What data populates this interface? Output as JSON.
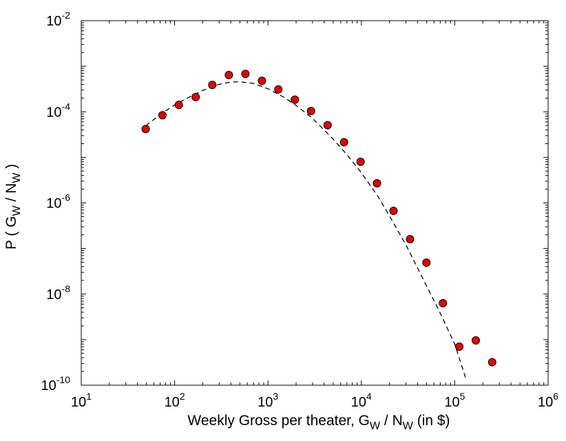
{
  "chart_data": {
    "type": "scatter",
    "title": "",
    "xscale": "log",
    "yscale": "log",
    "xlim": [
      10,
      1000000
    ],
    "ylim": [
      1e-10,
      0.01
    ],
    "x_ticks": [
      {
        "base": "10",
        "exp": "1"
      },
      {
        "base": "10",
        "exp": "2"
      },
      {
        "base": "10",
        "exp": "3"
      },
      {
        "base": "10",
        "exp": "4"
      },
      {
        "base": "10",
        "exp": "5"
      },
      {
        "base": "10",
        "exp": "6"
      }
    ],
    "y_ticks": [
      {
        "base": "10",
        "exp": "-10"
      },
      {
        "base": "10",
        "exp": "-8"
      },
      {
        "base": "10",
        "exp": "-6"
      },
      {
        "base": "10",
        "exp": "-4"
      },
      {
        "base": "10",
        "exp": "-2"
      }
    ],
    "xlabel": {
      "text": "Weekly Gross per theater,  G",
      "sub1": "W",
      "mid": " / N",
      "sub2": "W",
      "end": " (in $)"
    },
    "ylabel": {
      "text": "P ( G",
      "sub1": "W",
      "mid": " / N",
      "sub2": "W",
      "end": " )"
    },
    "series": [
      {
        "name": "data",
        "kind": "markers",
        "color": "#e00000",
        "edge_color": "#000000",
        "x": [
          49,
          74,
          111,
          168,
          253,
          381,
          573,
          861,
          1290,
          1940,
          2890,
          4350,
          6530,
          9810,
          14700,
          22100,
          33200,
          49800,
          74800,
          112000,
          168000,
          252000
        ],
        "y": [
          4.2e-05,
          8.4e-05,
          0.000142,
          0.00021,
          0.00039,
          0.00064,
          0.00068,
          0.00048,
          0.00031,
          0.000185,
          0.000104,
          5.1e-05,
          2.15e-05,
          8e-06,
          2.7e-06,
          6.7e-07,
          1.6e-07,
          4.9e-08,
          6.3e-09,
          7e-10,
          9.6e-10,
          3.2e-10
        ]
      },
      {
        "name": "fit",
        "kind": "dashed-line",
        "color": "#000000",
        "x": [
          49,
          70,
          100,
          150,
          200,
          300,
          400,
          500,
          700,
          1000,
          1500,
          2000,
          3000,
          5000,
          7000,
          10000,
          15000,
          20000,
          30000,
          50000,
          70000,
          100000,
          130000
        ],
        "y": [
          4.9e-05,
          8.7e-05,
          0.000142,
          0.00022,
          0.000295,
          0.0004,
          0.00045,
          0.000455,
          0.00042,
          0.00032,
          0.000205,
          0.000138,
          7.2e-05,
          2.5e-05,
          1.15e-05,
          4.6e-06,
          1.4e-06,
          5.2e-07,
          1.2e-07,
          1.5e-08,
          3.8e-09,
          8e-10,
          1.5e-10
        ]
      }
    ]
  }
}
